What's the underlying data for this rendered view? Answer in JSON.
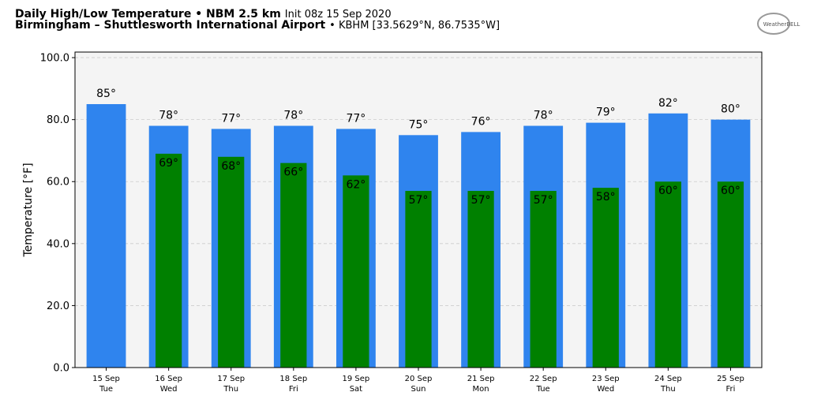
{
  "chart_data": {
    "type": "bar",
    "title": "Daily High/Low Temperature • NBM 2.5 km",
    "subtitle": "Init 08z 15 Sep 2020",
    "location": "Birmingham – Shuttlesworth International Airport",
    "station": "• KBHM [33.5629°N, 86.7535°W]",
    "logo": "WeatherBELL",
    "y_label": "Temperature [°F]",
    "categories": [
      [
        "15 Sep",
        "Tue"
      ],
      [
        "16 Sep",
        "Wed"
      ],
      [
        "17 Sep",
        "Thu"
      ],
      [
        "18 Sep",
        "Fri"
      ],
      [
        "19 Sep",
        "Sat"
      ],
      [
        "20 Sep",
        "Sun"
      ],
      [
        "21 Sep",
        "Mon"
      ],
      [
        "22 Sep",
        "Tue"
      ],
      [
        "23 Sep",
        "Wed"
      ],
      [
        "24 Sep",
        "Thu"
      ],
      [
        "25 Sep",
        "Fri"
      ]
    ],
    "series": [
      {
        "name": "High",
        "color": "#2f84ee",
        "values": [
          85,
          78,
          77,
          78,
          77,
          75,
          76,
          78,
          79,
          82,
          80
        ],
        "value_labels": [
          "85°",
          "78°",
          "77°",
          "78°",
          "77°",
          "75°",
          "76°",
          "78°",
          "79°",
          "82°",
          "80°"
        ]
      },
      {
        "name": "Low",
        "color": "#008000",
        "values": [
          null,
          69,
          68,
          66,
          62,
          57,
          57,
          57,
          58,
          60,
          60
        ],
        "value_labels": [
          null,
          "69°",
          "68°",
          "66°",
          "62°",
          "57°",
          "57°",
          "57°",
          "58°",
          "60°",
          "60°"
        ]
      }
    ],
    "ylim": [
      0,
      101.8
    ],
    "yticks": [
      {
        "value": 0,
        "label": "0.0"
      },
      {
        "value": 20,
        "label": "20.0"
      },
      {
        "value": 40,
        "label": "40.0"
      },
      {
        "value": 60,
        "label": "60.0"
      },
      {
        "value": 80,
        "label": "80.0"
      },
      {
        "value": 100,
        "label": "100.0"
      }
    ],
    "grid": true
  }
}
